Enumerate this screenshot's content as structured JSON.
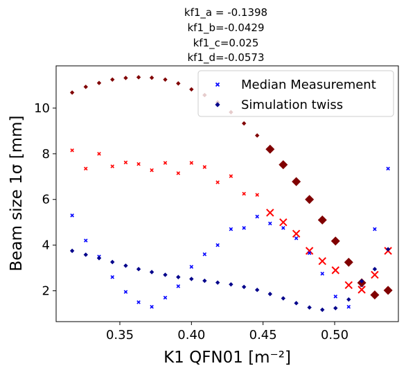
{
  "chart_data": {
    "type": "scatter",
    "title_lines": [
      "kf1_a = -0.1398",
      "kf1_b=-0.0429",
      "kf1_c=0.025",
      "kf1_d=-0.0573"
    ],
    "xlabel": "K1 QFN01 [m⁻²]",
    "ylabel": "Beam size 1σ [mm]",
    "xlim": [
      0.3055,
      0.5445
    ],
    "ylim": [
      0.65,
      11.85
    ],
    "xticks": [
      0.35,
      0.4,
      0.45,
      0.5
    ],
    "xtick_labels": [
      "0.35",
      "0.40",
      "0.45",
      "0.50"
    ],
    "yticks": [
      2,
      4,
      6,
      8,
      10
    ],
    "ytick_labels": [
      "2",
      "4",
      "6",
      "8",
      "10"
    ],
    "grid": false,
    "legend": {
      "position": "top-right",
      "entries": [
        {
          "label": "Median Measurement",
          "marker": "x",
          "color": "#0000ff"
        },
        {
          "label": "Simulation twiss",
          "marker": "diamond",
          "color": "#00008b"
        }
      ]
    },
    "x": [
      0.3167,
      0.3262,
      0.3355,
      0.3448,
      0.3541,
      0.3631,
      0.3723,
      0.3817,
      0.3908,
      0.4,
      0.4092,
      0.4183,
      0.4276,
      0.4367,
      0.4459,
      0.4549,
      0.4641,
      0.4732,
      0.4824,
      0.4914,
      0.5006,
      0.5098,
      0.5189,
      0.528,
      0.5373
    ],
    "series": [
      {
        "name": "Median Measurement",
        "plane": "x",
        "marker": "x",
        "color": "#ff0000",
        "values": [
          8.15,
          7.35,
          8.0,
          7.45,
          7.62,
          7.55,
          7.28,
          7.6,
          7.15,
          7.6,
          7.42,
          6.75,
          7.02,
          6.25,
          6.2,
          5.42,
          5.0,
          4.5,
          3.75,
          3.3,
          2.9,
          2.25,
          2.05,
          2.7,
          3.75
        ],
        "highlight_from_index": 15
      },
      {
        "name": "Median Measurement",
        "plane": "y",
        "marker": "x",
        "color": "#0000ff",
        "values": [
          5.3,
          4.2,
          3.5,
          2.6,
          1.95,
          1.5,
          1.3,
          1.7,
          2.2,
          3.05,
          3.6,
          4.0,
          4.7,
          4.75,
          5.25,
          4.95,
          4.75,
          4.3,
          3.65,
          2.75,
          1.75,
          1.3,
          2.25,
          4.7,
          7.35
        ]
      },
      {
        "name": "Simulation twiss",
        "plane": "x",
        "marker": "diamond",
        "color": "#800000",
        "values": [
          10.68,
          10.93,
          11.1,
          11.25,
          11.32,
          11.35,
          11.33,
          11.25,
          11.08,
          10.82,
          10.57,
          10.25,
          9.82,
          9.33,
          8.8,
          8.2,
          7.52,
          6.78,
          6.0,
          5.1,
          4.18,
          3.25,
          2.35,
          1.82,
          2.02
        ],
        "highlight_from_index": 15
      },
      {
        "name": "Simulation twiss",
        "plane": "y",
        "marker": "diamond",
        "color": "#00008b",
        "values": [
          3.75,
          3.58,
          3.43,
          3.26,
          3.1,
          2.95,
          2.82,
          2.7,
          2.6,
          2.52,
          2.44,
          2.36,
          2.28,
          2.17,
          2.04,
          1.86,
          1.67,
          1.46,
          1.27,
          1.17,
          1.24,
          1.62,
          2.42,
          2.95,
          3.82
        ]
      }
    ]
  }
}
